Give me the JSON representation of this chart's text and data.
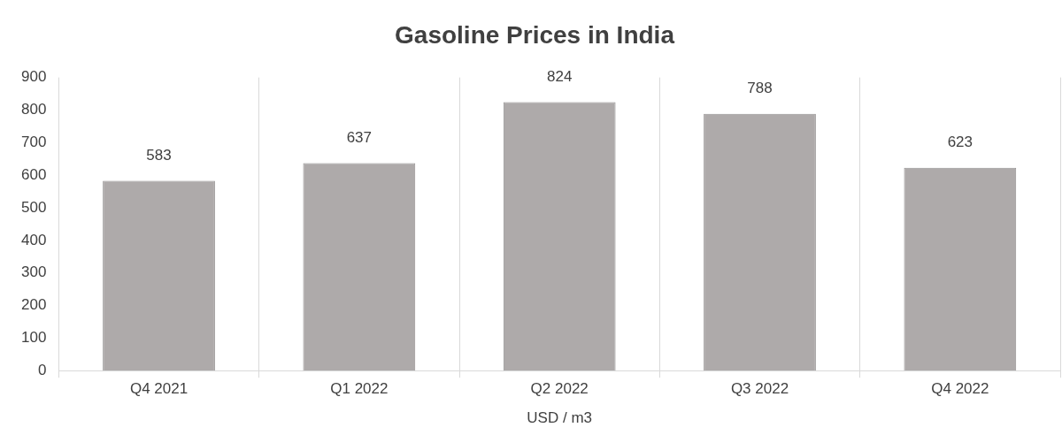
{
  "chart_data": {
    "type": "bar",
    "title": "Gasoline Prices in India",
    "xlabel": "USD / m3",
    "categories": [
      "Q4 2021",
      "Q1 2022",
      "Q2 2022",
      "Q3 2022",
      "Q4 2022"
    ],
    "values": [
      583,
      637,
      824,
      788,
      623
    ],
    "color": "#aeaaaa",
    "ylim": [
      0,
      900
    ],
    "yticks": [
      0,
      100,
      200,
      300,
      400,
      500,
      600,
      700,
      800,
      900
    ],
    "grid": "x",
    "legend": false,
    "data_labels": true
  }
}
